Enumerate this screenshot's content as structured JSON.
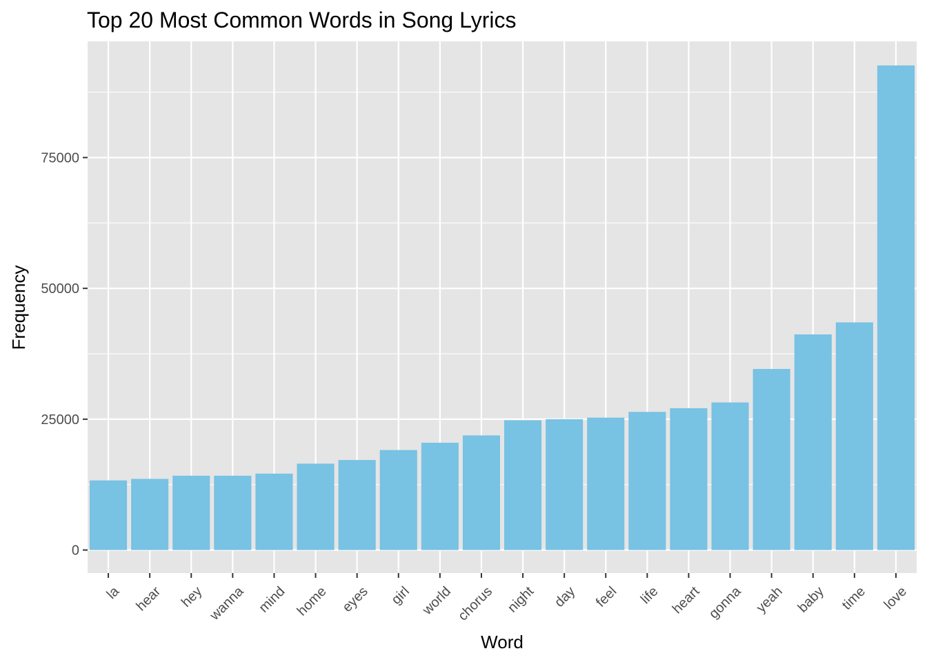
{
  "chart_data": {
    "type": "bar",
    "title": "Top 20 Most Common Words in Song Lyrics",
    "xlabel": "Word",
    "ylabel": "Frequency",
    "categories": [
      "la",
      "hear",
      "hey",
      "wanna",
      "mind",
      "home",
      "eyes",
      "girl",
      "world",
      "chorus",
      "night",
      "day",
      "feel",
      "life",
      "heart",
      "gonna",
      "yeah",
      "baby",
      "time",
      "love"
    ],
    "values": [
      13300,
      13600,
      14200,
      14200,
      14600,
      16500,
      17200,
      19100,
      20500,
      21900,
      24800,
      25000,
      25300,
      26400,
      27100,
      28200,
      34600,
      41200,
      43500,
      92600
    ],
    "ylim": [
      -4400,
      97200
    ],
    "yticks": [
      0,
      25000,
      50000,
      75000
    ],
    "ytick_labels": [
      "0",
      "25000",
      "50000",
      "75000"
    ],
    "grid": true,
    "legend": "none",
    "bar_color": "#78C2E3",
    "panel_color": "#E5E5E5",
    "grid_color": "#FFFFFF"
  }
}
